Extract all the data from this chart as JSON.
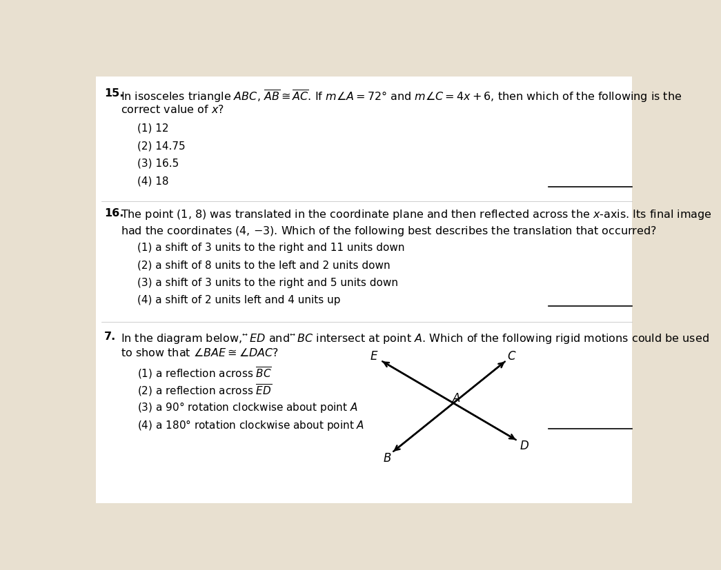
{
  "bg_color": "#e8e0d0",
  "paper_color": "#ffffff",
  "text_color": "#000000",
  "q15": {
    "number": "15.",
    "text_line1": "In isosceles triangle $ABC$, $\\overline{AB} \\cong \\overline{AC}$. If $m\\angle A = 72°$ and $m\\angle C = 4x + 6$, then which of the following is the",
    "text_line2": "correct value of $x$?",
    "options": [
      "(1) 12",
      "(2) 14.75",
      "(3) 16.5",
      "(4) 18"
    ]
  },
  "q16": {
    "number": "16.",
    "text_line1": "The point (1, 8) was translated in the coordinate plane and then reflected across the $x$-axis. Its final image",
    "text_line2": "had the coordinates (4, $-$3). Which of the following best describes the translation that occurred?",
    "options": [
      "(1) a shift of 3 units to the right and 11 units down",
      "(2) a shift of 8 units to the left and 2 units down",
      "(3) a shift of 3 units to the right and 5 units down",
      "(4) a shift of 2 units left and 4 units up"
    ]
  },
  "q17": {
    "number": "7.",
    "text_line1": "In the diagram below, $\\overleftrightarrow{ED}$ and $\\overleftrightarrow{BC}$ intersect at point $A$. Which of the following rigid motions could be used",
    "text_line2": "to show that $\\angle BAE \\cong \\angle DAC$?",
    "options": [
      "(1) a reflection across $\\overline{BC}$",
      "(2) a reflection across $\\overline{ED}$",
      "(3) a 90° rotation clockwise about point $A$",
      "(4) a 180° rotation clockwise about point $A$"
    ]
  },
  "fs_main": 11.5,
  "fs_opt": 11.0,
  "indent": 0.055,
  "opt_indent": 0.085,
  "lh": 0.038
}
